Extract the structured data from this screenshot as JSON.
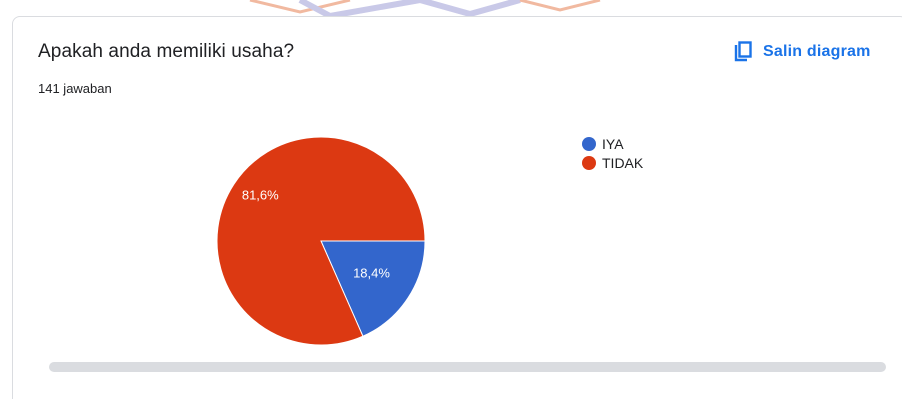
{
  "question": {
    "title": "Apakah anda memiliki usaha?",
    "response_count": "141 jawaban"
  },
  "toolbar": {
    "copy_label": "Salin diagram",
    "copy_icon": "copy-icon"
  },
  "colors": {
    "accent": "#1a73e8",
    "series_iya": "#3366cc",
    "series_tidak": "#dc3912",
    "scrollbar": "#dadce0"
  },
  "chart_data": {
    "type": "pie",
    "categories": [
      "IYA",
      "TIDAK"
    ],
    "values": [
      18.4,
      81.6
    ],
    "labels": [
      "18,4%",
      "81,6%"
    ],
    "colors": [
      "#3366cc",
      "#dc3912"
    ],
    "legend_position": "right"
  }
}
